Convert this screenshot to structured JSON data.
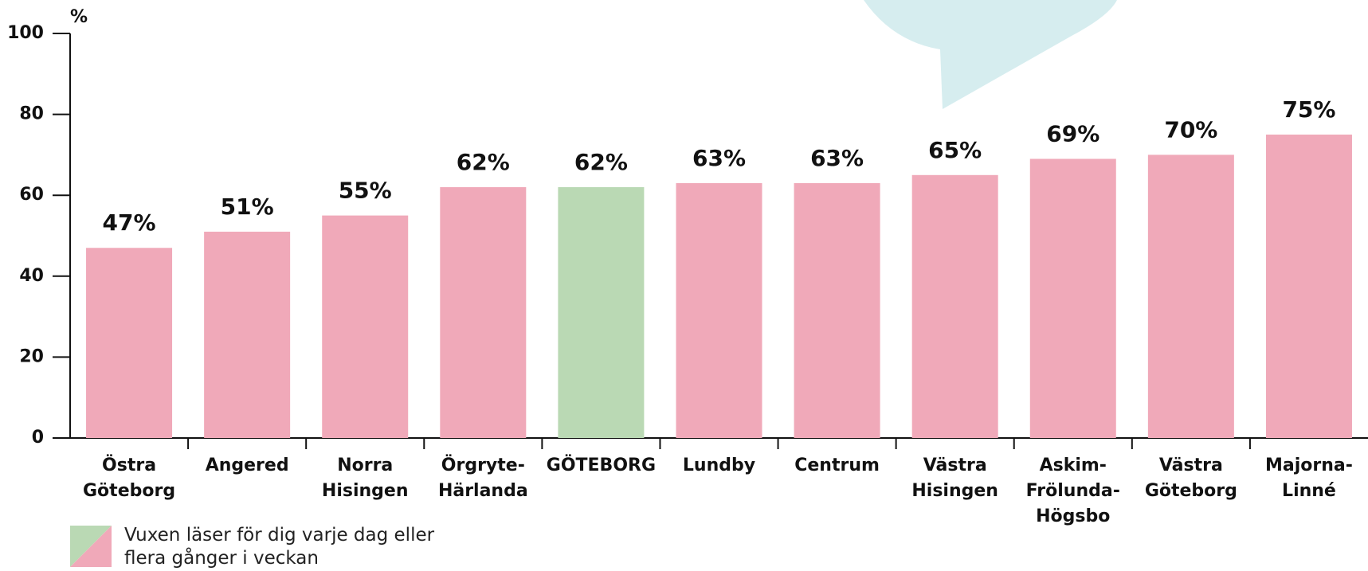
{
  "chart_data": {
    "type": "bar",
    "y_axis_label": "%",
    "categories": [
      "Östra Göteborg",
      "Angered",
      "Norra Hisingen",
      "Örgryte-Härlanda",
      "GÖTEBORG",
      "Lundby",
      "Centrum",
      "Västra Hisingen",
      "Askim-Frölunda-Högsbo",
      "Västra Göteborg",
      "Majorna-Linné"
    ],
    "values": [
      47,
      51,
      55,
      62,
      62,
      63,
      63,
      65,
      69,
      70,
      75
    ],
    "value_labels": [
      "47%",
      "51%",
      "55%",
      "62%",
      "62%",
      "63%",
      "63%",
      "65%",
      "69%",
      "70%",
      "75%"
    ],
    "colors": [
      "#f0a9b9",
      "#f0a9b9",
      "#f0a9b9",
      "#f0a9b9",
      "#bad9b4",
      "#f0a9b9",
      "#f0a9b9",
      "#f0a9b9",
      "#f0a9b9",
      "#f0a9b9",
      "#f0a9b9"
    ],
    "legend": "Vuxen läser för dig varje dag eller flera gånger i veckan",
    "ylim": [
      0,
      100
    ],
    "yticks": [
      0,
      20,
      40,
      60,
      80,
      100
    ]
  }
}
